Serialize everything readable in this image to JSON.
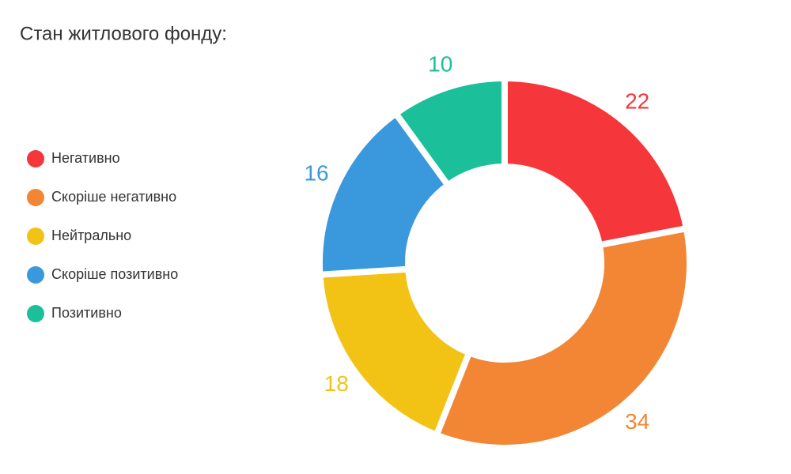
{
  "chart_data": {
    "type": "doughnut",
    "title": "Стан житлового фонду:",
    "categories": [
      "Негативно",
      "Скоріше негативно",
      "Нейтрально",
      "Скоріше позитивно",
      "Позитивно"
    ],
    "values": [
      22,
      34,
      18,
      16,
      10
    ],
    "colors": [
      "#f5373b",
      "#f28634",
      "#f2c314",
      "#3a98dc",
      "#1bbf9a"
    ],
    "legend": "left"
  }
}
